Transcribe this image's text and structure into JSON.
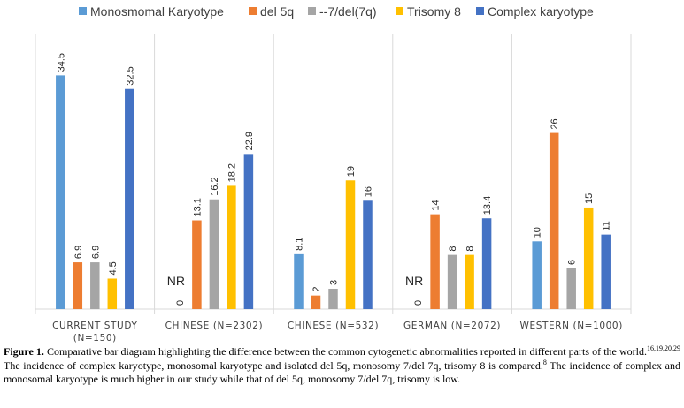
{
  "chart_data": {
    "type": "bar",
    "title": "",
    "xlabel": "",
    "ylabel": "",
    "ylim": [
      0,
      40
    ],
    "grid": "vertical separators",
    "legend_position": "top",
    "categories": [
      [
        "CURRENT STUDY",
        "(N=150)"
      ],
      [
        "CHINESE (N=2302)"
      ],
      [
        "CHINESE (N=532)"
      ],
      [
        "GERMAN (N=2072)"
      ],
      [
        "WESTERN (N=1000)"
      ]
    ],
    "series": [
      {
        "name": "Monosmomal Karyotype",
        "color": "#5B9BD5",
        "values": [
          34.5,
          0,
          8.1,
          0,
          10
        ],
        "labels": [
          "34.5",
          "0",
          "8.1",
          "0",
          "10"
        ]
      },
      {
        "name": "del 5q",
        "color": "#ED7D31",
        "values": [
          6.9,
          13.1,
          2,
          14,
          26
        ],
        "labels": [
          "6.9",
          "13.1",
          "2",
          "14",
          "26"
        ]
      },
      {
        "name": "--7/del(7q)",
        "color": "#A5A5A5",
        "values": [
          6.9,
          16.2,
          3,
          8,
          6
        ],
        "labels": [
          "6.9",
          "16.2",
          "3",
          "8",
          "6"
        ]
      },
      {
        "name": "Trisomy 8",
        "color": "#FFC000",
        "values": [
          4.5,
          18.2,
          19,
          8,
          15
        ],
        "labels": [
          "4.5",
          "18.2",
          "19",
          "8",
          "15"
        ]
      },
      {
        "name": "Complex karyotype",
        "color": "#4472C4",
        "values": [
          32.5,
          22.9,
          16,
          13.4,
          11
        ],
        "labels": [
          "32.5",
          "22.9",
          "16",
          "13.4",
          "11"
        ]
      }
    ],
    "annotations": [
      {
        "text": "NR",
        "category_index": 1
      },
      {
        "text": "NR",
        "category_index": 3
      }
    ]
  },
  "caption": {
    "label": "Figure 1.",
    "text1": " Comparative bar diagram highlighting the difference between the common cytogenetic abnormalities reported in different parts of the world.",
    "ref1": "16,19,20,29",
    "text2": " The incidence of complex karyotype, monosomal karyotype and isolated del 5q, monosomy 7/del 7q, trisomy 8 is compared.",
    "ref2": "8",
    "text3": " The incidence of complex and monosomal karyotype is much higher in our study while that of del 5q, monosomy 7/del 7q, trisomy is low."
  }
}
